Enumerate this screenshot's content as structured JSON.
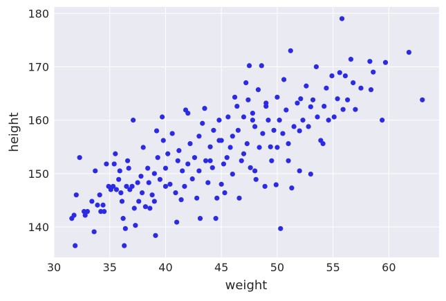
{
  "chart_data": {
    "type": "scatter",
    "x_label": "weight",
    "y_label": "height",
    "color": "#2b2be3",
    "grid": true,
    "background": "#eaeaf2",
    "xlim": [
      30,
      64.5
    ],
    "ylim": [
      134.3,
      181.2
    ],
    "xticks": [
      30,
      35,
      40,
      45,
      50,
      55,
      60
    ],
    "yticks": [
      140,
      150,
      160,
      170,
      180
    ],
    "x": [
      31.6,
      31.8,
      31.9,
      32,
      32.3,
      32.7,
      32.8,
      33,
      33.4,
      33.6,
      33.7,
      33.9,
      34.1,
      34.2,
      34.4,
      34.5,
      34.7,
      34.9,
      35.1,
      35.3,
      35.4,
      35.5,
      35.6,
      35.8,
      35.9,
      36,
      36.1,
      36.2,
      36.3,
      36.4,
      36.5,
      36.6,
      36.7,
      36.8,
      37,
      37.1,
      37.2,
      37.3,
      37.5,
      37.6,
      37.8,
      37.9,
      38,
      38.2,
      38.4,
      38.5,
      38.6,
      38.8,
      39,
      39.1,
      39.2,
      39.3,
      39.5,
      39.7,
      39.8,
      40,
      40.2,
      40.4,
      40.6,
      40.9,
      41,
      41.1,
      41.2,
      41.4,
      41.5,
      41.7,
      41.8,
      42,
      42.2,
      42.4,
      42.6,
      42.8,
      43,
      43.1,
      43.3,
      43.5,
      43.6,
      43.8,
      44,
      44.2,
      44.3,
      44.5,
      44.6,
      44.8,
      45,
      45.2,
      45.3,
      45.5,
      45.6,
      45.8,
      46,
      46.2,
      46.4,
      46.5,
      46.6,
      46.8,
      47,
      47.2,
      47.3,
      47.4,
      47.5,
      47.6,
      47.8,
      48,
      48.1,
      48.3,
      48.4,
      48.6,
      48.7,
      48.9,
      49,
      49.2,
      49.4,
      49.5,
      49.7,
      49.9,
      50,
      50.2,
      50.3,
      50.5,
      50.6,
      50.8,
      51,
      51.2,
      51.3,
      51.5,
      51.8,
      52,
      52.1,
      52.3,
      52.6,
      52.8,
      53,
      53.2,
      53.5,
      53.6,
      53.9,
      54.1,
      54.2,
      54.4,
      54.6,
      54.9,
      55.1,
      55.4,
      55.6,
      55.8,
      55.9,
      56.1,
      56.3,
      56.6,
      56.8,
      57,
      57.5,
      58.3,
      58.4,
      58.6,
      59.4,
      59.7,
      61.8,
      63,
      44,
      45,
      47,
      48,
      46,
      43,
      42,
      40,
      39,
      50,
      49,
      52,
      51,
      44.8,
      47.8,
      53
    ],
    "values": [
      141.6,
      142.2,
      136.5,
      146,
      153,
      142.9,
      142.2,
      142.9,
      144.8,
      139.1,
      150.5,
      144.1,
      146,
      142.9,
      144.1,
      142.9,
      151.8,
      147.6,
      147,
      147.6,
      151.8,
      153.7,
      147,
      148.9,
      150.5,
      146.4,
      144.8,
      141.6,
      136.5,
      139.7,
      147.6,
      152.4,
      151,
      147,
      147.6,
      160,
      143.5,
      140.3,
      148.3,
      144.8,
      149.5,
      146.4,
      154.9,
      143.8,
      151,
      148.3,
      143.5,
      146,
      144.8,
      138.4,
      158,
      153,
      148.9,
      160.6,
      156.2,
      147.6,
      153.7,
      148,
      157.5,
      146.4,
      140.9,
      152.4,
      154.3,
      145.1,
      150.5,
      147.6,
      161.9,
      161.3,
      155.6,
      149,
      153,
      145.4,
      157,
      141.6,
      159.4,
      162.2,
      152.4,
      148.3,
      155,
      151.1,
      158.1,
      141.6,
      145.4,
      160,
      156.2,
      151.8,
      146.4,
      153,
      160.6,
      154.9,
      149.9,
      164.3,
      162.6,
      158.1,
      145.4,
      152.4,
      160.6,
      167,
      155.6,
      163.8,
      170.2,
      151.1,
      161.3,
      158.8,
      148.9,
      165.7,
      154.9,
      170.2,
      157.5,
      147.6,
      162.6,
      160,
      155,
      152.4,
      158.1,
      147.9,
      164.3,
      160,
      139.7,
      157.5,
      167.6,
      161.9,
      152.4,
      173,
      147.3,
      158.8,
      163.2,
      150.5,
      164,
      160,
      166.4,
      158.8,
      149.9,
      163.8,
      170,
      160.6,
      156.2,
      155.6,
      162.6,
      166,
      160,
      168.3,
      160.6,
      164,
      168.9,
      179,
      162,
      168.3,
      163.8,
      171.4,
      167,
      162,
      166,
      171,
      165.7,
      169,
      160,
      170.8,
      172.7,
      163.8,
      152.4,
      148,
      153.7,
      150.5,
      157,
      150.5,
      151.8,
      151,
      150,
      154.9,
      163.2,
      158,
      155.6,
      156.2,
      160,
      162.5
    ]
  }
}
